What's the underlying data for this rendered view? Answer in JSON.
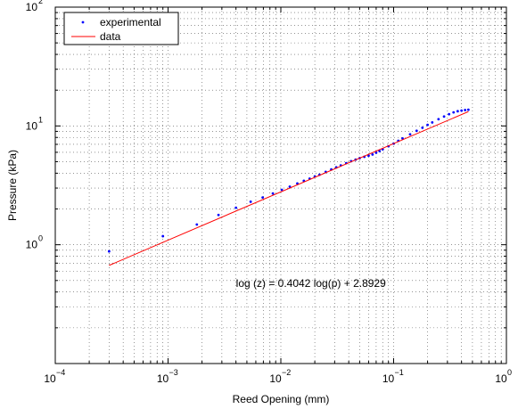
{
  "chart_data": {
    "type": "scatter",
    "title": "",
    "xlabel": "Reed Opening (mm)",
    "ylabel": "Pressure (kPa)",
    "xscale": "log",
    "yscale": "log",
    "xlim": [
      0.0001,
      1
    ],
    "ylim": [
      0.1,
      100
    ],
    "grid": true,
    "legend_position": "top-left",
    "x_tick_labels": [
      {
        "base": "10",
        "exp": "−4",
        "value": 0.0001
      },
      {
        "base": "10",
        "exp": "−3",
        "value": 0.001
      },
      {
        "base": "10",
        "exp": "−2",
        "value": 0.01
      },
      {
        "base": "10",
        "exp": "−1",
        "value": 0.1
      },
      {
        "base": "10",
        "exp": "0",
        "value": 1
      }
    ],
    "y_tick_labels": [
      {
        "base": "10",
        "exp": "0",
        "value": 1
      },
      {
        "base": "10",
        "exp": "1",
        "value": 10
      },
      {
        "base": "10",
        "exp": "2",
        "value": 100
      }
    ],
    "annotation": {
      "text": "log (z) = 0.4042 log(p) + 2.8929",
      "x": 0.004,
      "y": 0.44
    },
    "series": [
      {
        "name": "experimental",
        "kind": "scatter",
        "color": "#0000ff",
        "x": [
          0.0003,
          0.0009,
          0.0018,
          0.0028,
          0.004,
          0.0054,
          0.0069,
          0.0085,
          0.0102,
          0.012,
          0.014,
          0.016,
          0.018,
          0.02,
          0.022,
          0.025,
          0.028,
          0.031,
          0.034,
          0.038,
          0.042,
          0.046,
          0.05,
          0.055,
          0.06,
          0.065,
          0.07,
          0.075,
          0.08,
          0.09,
          0.1,
          0.11,
          0.12,
          0.14,
          0.16,
          0.18,
          0.2,
          0.22,
          0.25,
          0.28,
          0.31,
          0.34,
          0.37,
          0.4,
          0.43,
          0.46
        ],
        "y": [
          0.88,
          1.18,
          1.48,
          1.78,
          2.05,
          2.3,
          2.5,
          2.7,
          2.9,
          3.08,
          3.28,
          3.45,
          3.6,
          3.75,
          3.88,
          4.1,
          4.3,
          4.48,
          4.65,
          4.86,
          5.05,
          5.2,
          5.35,
          5.5,
          5.62,
          5.75,
          5.95,
          6.15,
          6.35,
          6.75,
          7.1,
          7.5,
          7.85,
          8.5,
          9.1,
          9.65,
          10.2,
          10.7,
          11.4,
          12.0,
          12.55,
          13.0,
          13.3,
          13.45,
          13.6,
          13.7
        ]
      },
      {
        "name": "data",
        "kind": "line",
        "color": "#ff0000",
        "x": [
          0.0003,
          0.46
        ],
        "y": [
          0.67,
          13.2
        ]
      }
    ]
  }
}
